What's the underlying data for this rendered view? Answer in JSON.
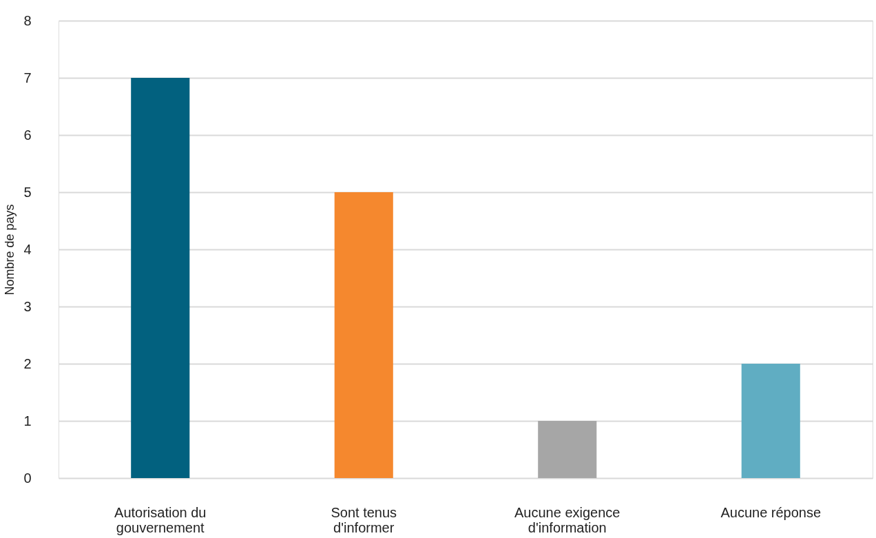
{
  "chart_data": {
    "type": "bar",
    "ylabel": "Nombre de pays",
    "categories": [
      "Autorisation du\ngouvernement",
      "Sont tenus\nd'informer",
      "Aucune exigence\nd'information",
      "Aucune réponse"
    ],
    "values": [
      7,
      5,
      1,
      2
    ],
    "colors": [
      "#02617f",
      "#f5882e",
      "#a6a6a6",
      "#60adc2"
    ],
    "ylim": [
      0,
      8
    ],
    "yticks": [
      0,
      1,
      2,
      3,
      4,
      5,
      6,
      7,
      8
    ],
    "grid": "y",
    "legend": false
  }
}
